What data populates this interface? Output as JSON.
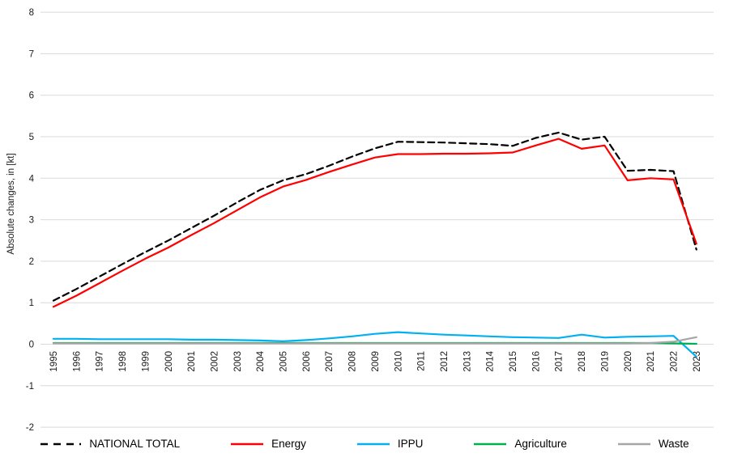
{
  "chart_data": {
    "type": "line",
    "title": "",
    "xlabel": "",
    "ylabel": "Absolute changes, in [kt]",
    "ylim": [
      -2,
      8
    ],
    "yticks": [
      8,
      7,
      6,
      5,
      4,
      3,
      2,
      1,
      0,
      -1,
      -2
    ],
    "grid": "horizontal",
    "legend_position": "bottom",
    "gridline_color": "#D9D9D9",
    "text_color": "#1a1a1a",
    "categories": [
      "1995",
      "1996",
      "1997",
      "1998",
      "1999",
      "2000",
      "2001",
      "2002",
      "2003",
      "2004",
      "2005",
      "2006",
      "2007",
      "2008",
      "2009",
      "2010",
      "2011",
      "2012",
      "2013",
      "2014",
      "2015",
      "2016",
      "2017",
      "2018",
      "2019",
      "2020",
      "2021",
      "2022",
      "2023"
    ],
    "series": [
      {
        "name": "NATIONAL TOTAL",
        "color": "#000000",
        "style": "dashed",
        "values": [
          1.05,
          1.33,
          1.63,
          1.93,
          2.22,
          2.5,
          2.8,
          3.1,
          3.42,
          3.72,
          3.95,
          4.1,
          4.3,
          4.52,
          4.72,
          4.88,
          4.87,
          4.86,
          4.84,
          4.82,
          4.78,
          4.97,
          5.1,
          4.93,
          5.0,
          4.18,
          4.2,
          4.17,
          2.28
        ]
      },
      {
        "name": "Energy",
        "color": "#FF0000",
        "style": "solid",
        "values": [
          0.9,
          1.17,
          1.47,
          1.77,
          2.06,
          2.33,
          2.63,
          2.92,
          3.23,
          3.54,
          3.8,
          3.96,
          4.15,
          4.33,
          4.5,
          4.58,
          4.58,
          4.59,
          4.59,
          4.6,
          4.62,
          4.79,
          4.95,
          4.71,
          4.79,
          3.95,
          4.0,
          3.97,
          2.42
        ]
      },
      {
        "name": "IPPU",
        "color": "#00B0F0",
        "style": "solid",
        "values": [
          0.13,
          0.13,
          0.12,
          0.12,
          0.12,
          0.12,
          0.11,
          0.11,
          0.1,
          0.09,
          0.07,
          0.1,
          0.14,
          0.19,
          0.25,
          0.29,
          0.26,
          0.23,
          0.21,
          0.19,
          0.17,
          0.16,
          0.15,
          0.23,
          0.16,
          0.18,
          0.19,
          0.2,
          -0.3
        ]
      },
      {
        "name": "Agriculture",
        "color": "#00B050",
        "style": "solid",
        "values": [
          0.03,
          0.03,
          0.03,
          0.03,
          0.03,
          0.03,
          0.03,
          0.03,
          0.03,
          0.03,
          0.03,
          0.03,
          0.03,
          0.03,
          0.03,
          0.03,
          0.03,
          0.03,
          0.03,
          0.03,
          0.03,
          0.03,
          0.03,
          0.03,
          0.03,
          0.03,
          0.03,
          0.02,
          0.01
        ]
      },
      {
        "name": "Waste",
        "color": "#A6A6A6",
        "style": "solid",
        "values": [
          0.02,
          0.02,
          0.02,
          0.02,
          0.02,
          0.02,
          0.02,
          0.02,
          0.02,
          0.02,
          0.02,
          0.02,
          0.02,
          0.02,
          0.02,
          0.02,
          0.02,
          0.02,
          0.02,
          0.02,
          0.02,
          0.02,
          0.02,
          0.02,
          0.02,
          0.02,
          0.03,
          0.06,
          0.17
        ]
      }
    ]
  }
}
